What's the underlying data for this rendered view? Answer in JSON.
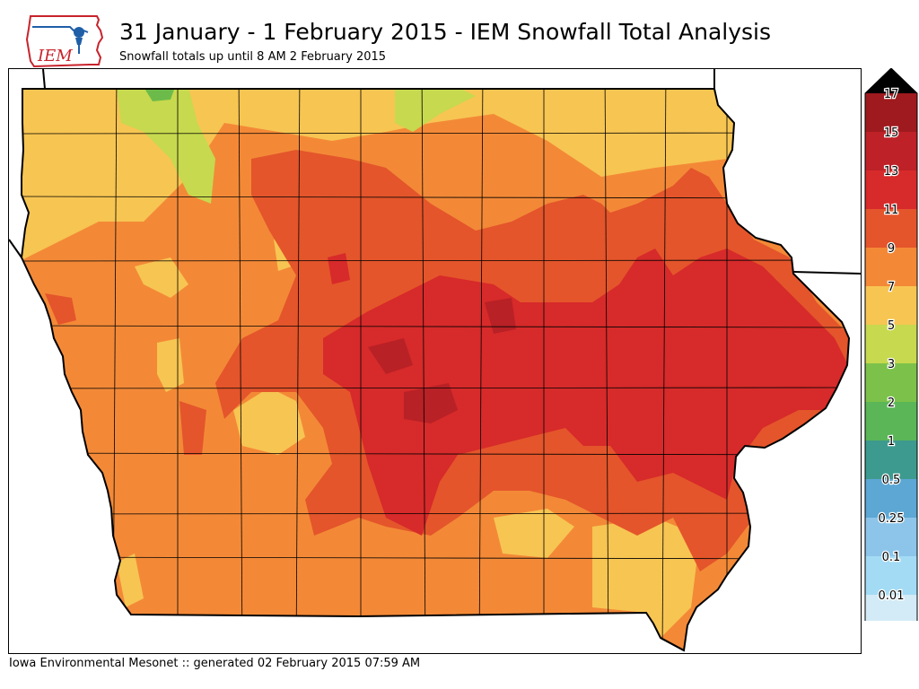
{
  "header": {
    "title": "31 January - 1 February 2015 - IEM Snowfall Total Analysis",
    "subtitle": "Snowfall totals up until 8 AM 2 February 2015"
  },
  "logo": {
    "text": "IEM"
  },
  "footer": {
    "text": "Iowa Environmental Mesonet :: generated 02 February 2015 07:59 AM"
  },
  "legend": {
    "levels": [
      {
        "label": "0.01",
        "color": "#d3ebf7"
      },
      {
        "label": "0.1",
        "color": "#a3dbf5"
      },
      {
        "label": "0.25",
        "color": "#8dc5ea"
      },
      {
        "label": "0.5",
        "color": "#5ca7d4"
      },
      {
        "label": "1",
        "color": "#3d9a8e"
      },
      {
        "label": "2",
        "color": "#5ab657"
      },
      {
        "label": "3",
        "color": "#7cc24a"
      },
      {
        "label": "5",
        "color": "#c7d94e"
      },
      {
        "label": "7",
        "color": "#f7c552"
      },
      {
        "label": "9",
        "color": "#f38937"
      },
      {
        "label": "11",
        "color": "#e4552b"
      },
      {
        "label": "13",
        "color": "#d72a2a"
      },
      {
        "label": "15",
        "color": "#be2127"
      },
      {
        "label": "17",
        "color": "#9e1a1e"
      }
    ],
    "top_color": "#000000"
  },
  "map_colors": {
    "lt5": "#c7d94e",
    "c5_7": "#f7c552",
    "c7_9": "#f38937",
    "c9_11": "#e4552b",
    "c11_13": "#d72a2a",
    "c13_15": "#b82126",
    "c3_5": "#6cbb4a"
  }
}
